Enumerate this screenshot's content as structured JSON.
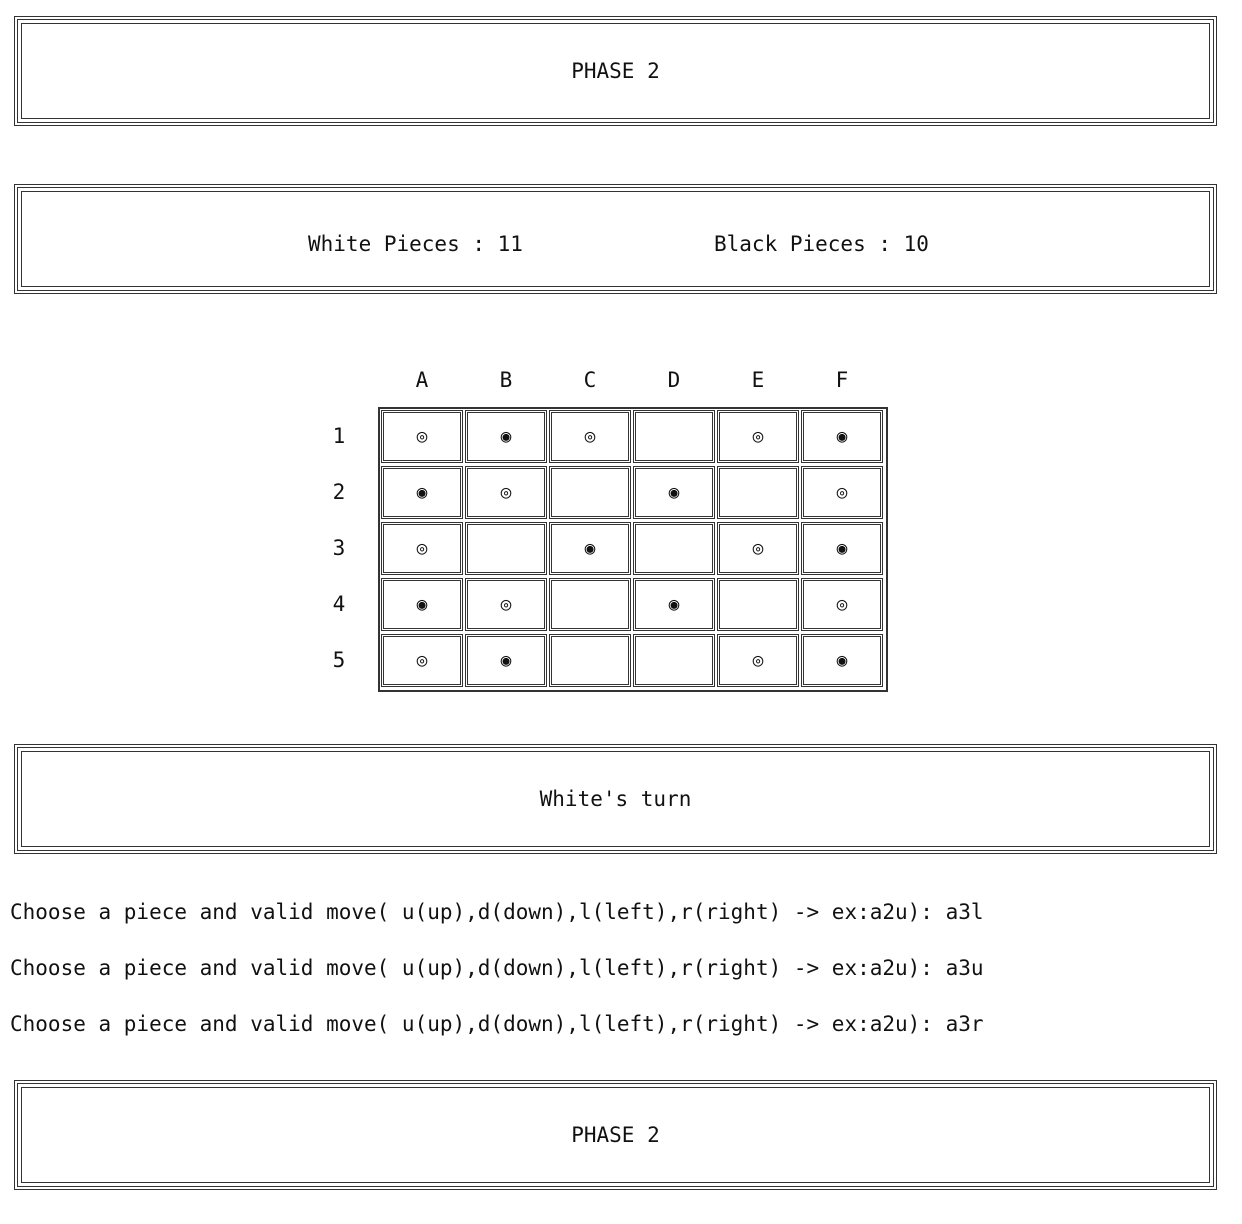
{
  "phase_top": "PHASE 2",
  "counts": {
    "white": "White Pieces : 11",
    "black": "Black Pieces : 10"
  },
  "columns": [
    "A",
    "B",
    "C",
    "D",
    "E",
    "F"
  ],
  "rows": [
    "1",
    "2",
    "3",
    "4",
    "5"
  ],
  "board": [
    [
      "◎",
      "◉",
      "◎",
      "",
      "◎",
      "◉"
    ],
    [
      "◉",
      "◎",
      "",
      "◉",
      "",
      "◎"
    ],
    [
      "◎",
      "",
      "◉",
      "",
      "◎",
      "◉"
    ],
    [
      "◉",
      "◎",
      "",
      "◉",
      "",
      "◎"
    ],
    [
      "◎",
      "◉",
      "",
      "",
      "◎",
      "◉"
    ]
  ],
  "turn": "White's turn",
  "log": [
    "Choose a piece and valid move( u(up),d(down),l(left),r(right) -> ex:a2u): a3l",
    "Choose a piece and valid move( u(up),d(down),l(left),r(right) -> ex:a2u): a3u",
    "Choose a piece and valid move( u(up),d(down),l(left),r(right) -> ex:a2u): a3r"
  ],
  "phase_bottom": "PHASE 2"
}
